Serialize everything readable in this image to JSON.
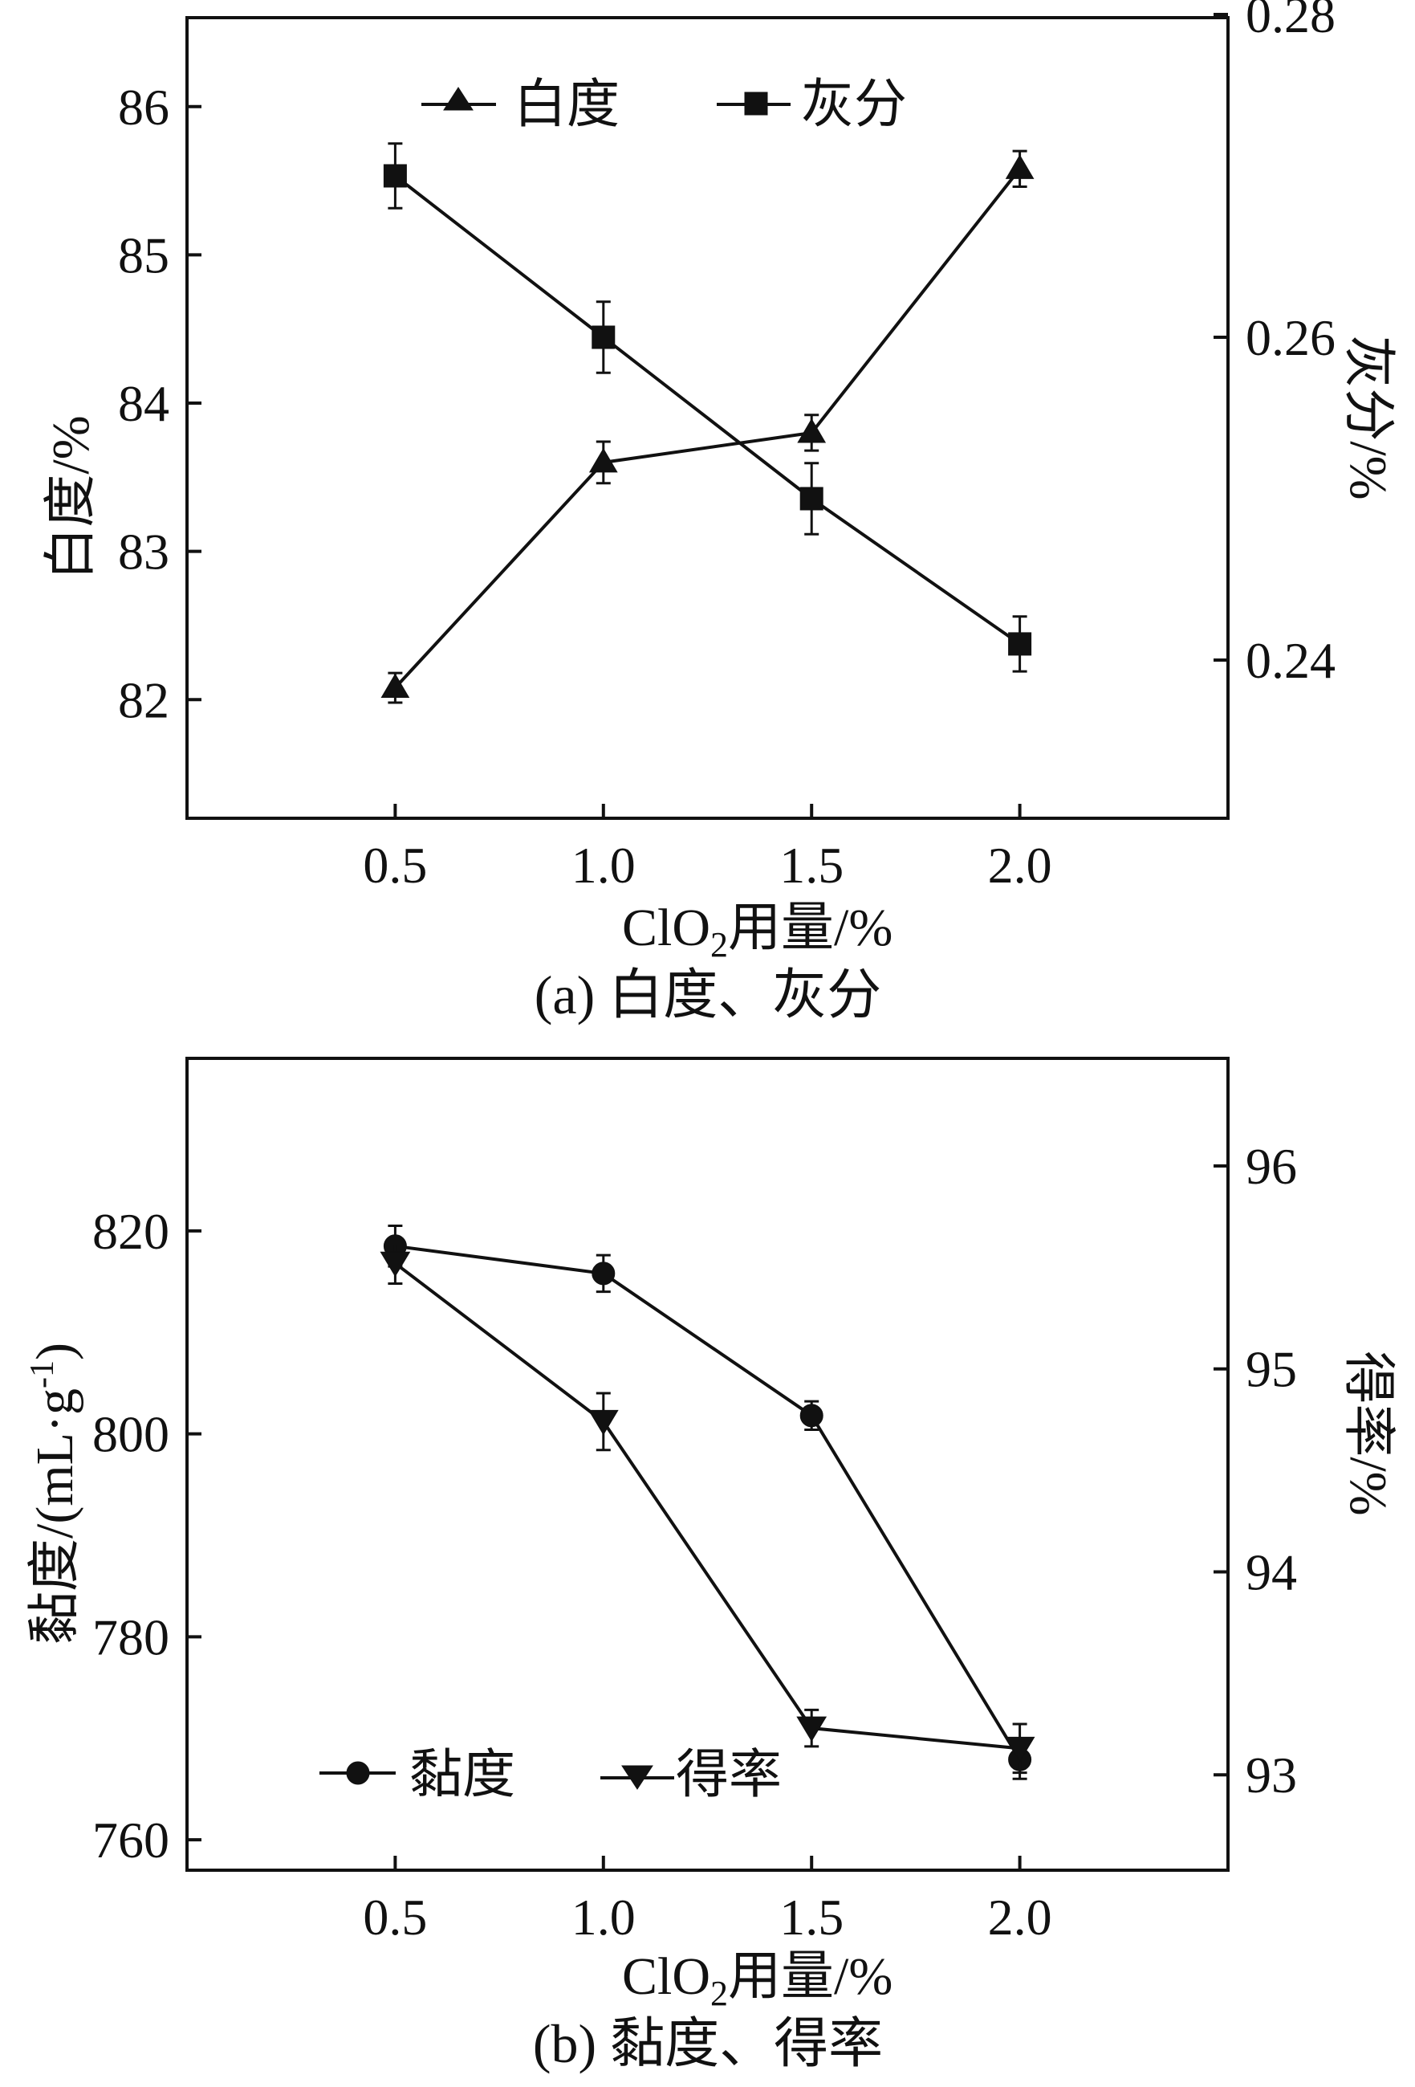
{
  "chart_data": [
    {
      "panel": "a",
      "type": "line",
      "caption": "(a) 白度、灰分",
      "xlabel": "ClO",
      "xlabel_sub": "2",
      "xlabel_rest": "用量/%",
      "ylabel_left": "白度/%",
      "ylabel_right": "灰分/%",
      "x_ticks": [
        "0.5",
        "1.0",
        "1.5",
        "2.0"
      ],
      "left_ticks": [
        "82",
        "83",
        "84",
        "85",
        "86"
      ],
      "right_ticks": [
        "0.24",
        "0.26",
        "0.28"
      ],
      "xlim": [
        0.0,
        2.5
      ],
      "ylim_left": [
        81.2,
        86.6
      ],
      "ylim_right": [
        0.2302,
        0.2798
      ],
      "legend_position": "top",
      "grid": false,
      "series": [
        {
          "name": "白度",
          "axis": "left",
          "marker": "triangle-up",
          "x": [
            0.5,
            1.0,
            1.5,
            2.0
          ],
          "y": [
            82.08,
            83.6,
            83.8,
            85.58
          ],
          "err": [
            0.1,
            0.14,
            0.12,
            0.12
          ]
        },
        {
          "name": "灰分",
          "axis": "right",
          "marker": "square",
          "x": [
            0.5,
            1.0,
            1.5,
            2.0
          ],
          "y": [
            0.27,
            0.26,
            0.25,
            0.241
          ],
          "err": [
            0.002,
            0.0022,
            0.0022,
            0.0017
          ]
        }
      ]
    },
    {
      "panel": "b",
      "type": "line",
      "caption": "(b) 黏度、得率",
      "xlabel": "ClO",
      "xlabel_sub": "2",
      "xlabel_rest": "用量/%",
      "ylabel_left": "黏度/(mL·g",
      "ylabel_left_sup": "-1",
      "ylabel_left_close": ")",
      "ylabel_right": "得率/%",
      "x_ticks": [
        "0.5",
        "1.0",
        "1.5",
        "2.0"
      ],
      "left_ticks": [
        "760",
        "780",
        "800",
        "820"
      ],
      "right_ticks": [
        "93",
        "94",
        "95",
        "96"
      ],
      "xlim": [
        0.0,
        2.5
      ],
      "ylim_left": [
        757,
        837
      ],
      "ylim_right": [
        92.53,
        96.53
      ],
      "legend_position": "bottom-left",
      "grid": false,
      "series": [
        {
          "name": "黏度",
          "axis": "left",
          "marker": "circle",
          "x": [
            0.5,
            1.0,
            1.5,
            2.0
          ],
          "y": [
            818.5,
            815.8,
            801.8,
            767.9
          ],
          "err": [
            2.0,
            1.8,
            1.4,
            1.9
          ]
        },
        {
          "name": "得率",
          "axis": "right",
          "marker": "triangle-down",
          "x": [
            0.5,
            1.0,
            1.5,
            2.0
          ],
          "y": [
            95.52,
            94.74,
            93.23,
            93.13
          ],
          "err": [
            0.1,
            0.14,
            0.09,
            0.12
          ]
        }
      ]
    }
  ]
}
